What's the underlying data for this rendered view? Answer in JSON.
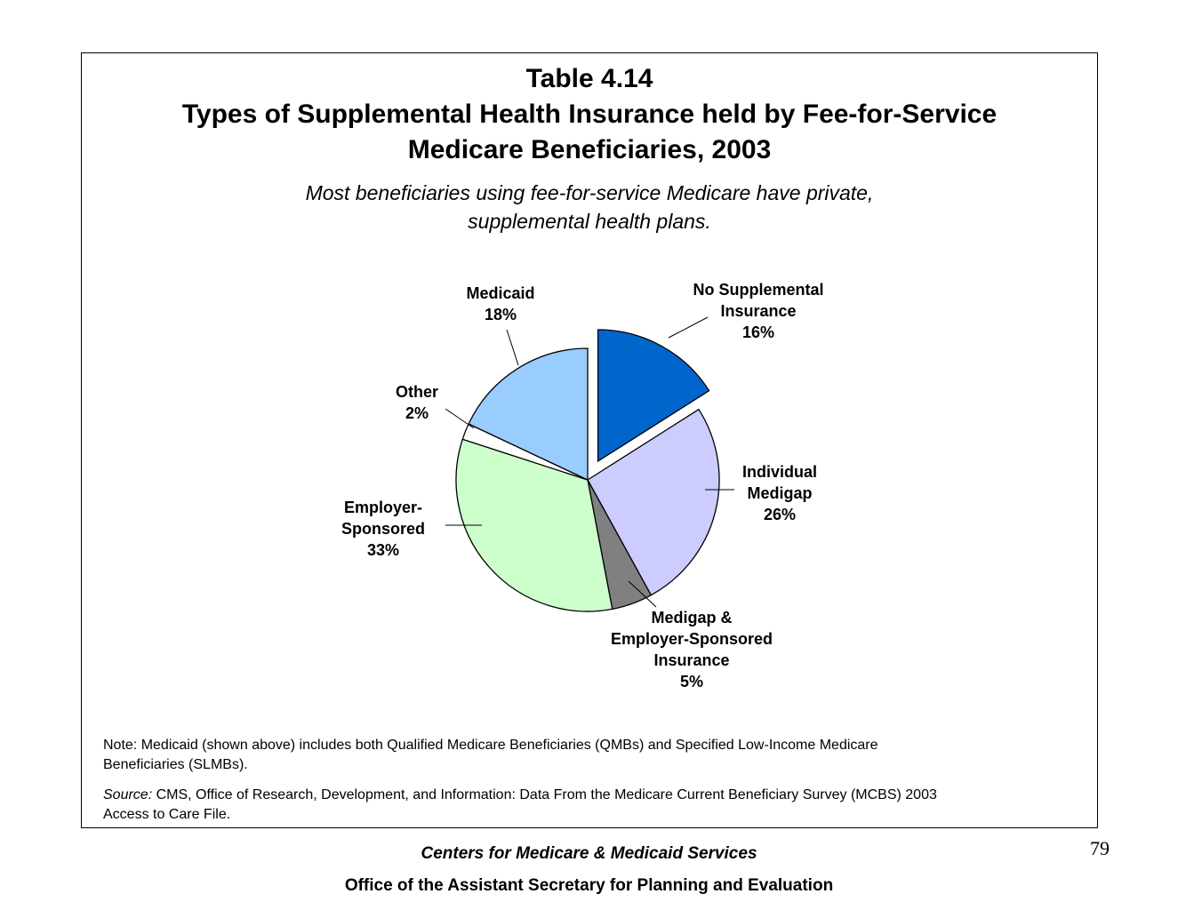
{
  "header": {
    "title_line1": "Table 4.14",
    "title_line2": "Types of Supplemental Health Insurance held by Fee-for-Service",
    "title_line3": "Medicare Beneficiaries, 2003",
    "subtitle_line1": "Most beneficiaries using fee-for-service Medicare have private,",
    "subtitle_line2": "supplemental health plans."
  },
  "chart_data": {
    "type": "pie",
    "title": "Types of Supplemental Health Insurance held by Fee-for-Service Medicare Beneficiaries, 2003",
    "slices": [
      {
        "label_lines": [
          "No Supplemental",
          "Insurance"
        ],
        "value": 16,
        "value_label": "16%",
        "color": "#0066cc",
        "exploded": true
      },
      {
        "label_lines": [
          "Individual",
          "Medigap"
        ],
        "value": 26,
        "value_label": "26%",
        "color": "#ccccff",
        "exploded": false
      },
      {
        "label_lines": [
          "Medigap &",
          "Employer-Sponsored",
          "Insurance"
        ],
        "value": 5,
        "value_label": "5%",
        "color": "#808080",
        "exploded": false
      },
      {
        "label_lines": [
          "Employer-",
          "Sponsored"
        ],
        "value": 33,
        "value_label": "33%",
        "color": "#ccffcc",
        "exploded": false
      },
      {
        "label_lines": [
          "Other"
        ],
        "value": 2,
        "value_label": "2%",
        "color": "#ffffff",
        "exploded": false
      },
      {
        "label_lines": [
          "Medicaid"
        ],
        "value": 18,
        "value_label": "18%",
        "color": "#99ccff",
        "exploded": false
      }
    ]
  },
  "notes": {
    "note_line1": "Note: Medicaid (shown above) includes both Qualified Medicare Beneficiaries (QMBs) and Specified Low-Income Medicare",
    "note_line2": "Beneficiaries (SLMBs).",
    "source_label": "Source:",
    "source_line1": " CMS, Office of Research, Development, and Information: Data From the Medicare Current Beneficiary Survey (MCBS) 2003",
    "source_line2": "Access to Care File."
  },
  "footer": {
    "org": "Centers for Medicare & Medicaid Services",
    "office": "Office of the Assistant Secretary for Planning and Evaluation",
    "page_number": "79"
  }
}
